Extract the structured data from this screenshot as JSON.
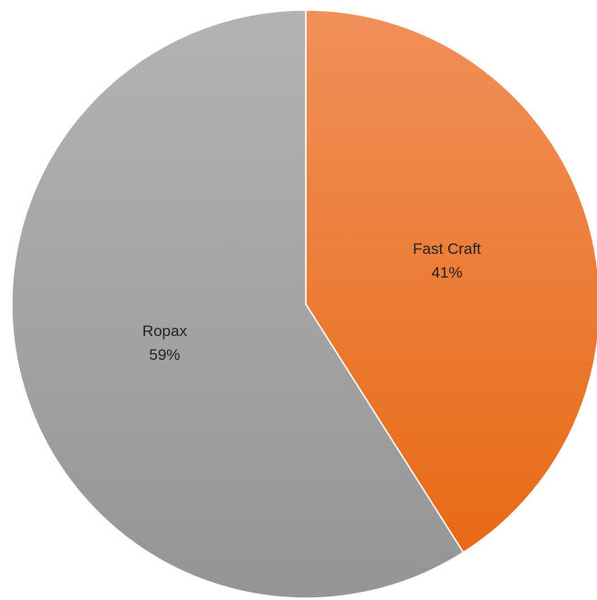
{
  "chart_data": {
    "type": "pie",
    "title": "",
    "start_angle_deg": 0,
    "direction": "clockwise",
    "slices": [
      {
        "name": "Fast Craft",
        "value": 41,
        "label": "41%",
        "color": "#ED7D31"
      },
      {
        "name": "Ropax",
        "value": 59,
        "label": "59%",
        "color": "#A5A5A5"
      }
    ]
  }
}
